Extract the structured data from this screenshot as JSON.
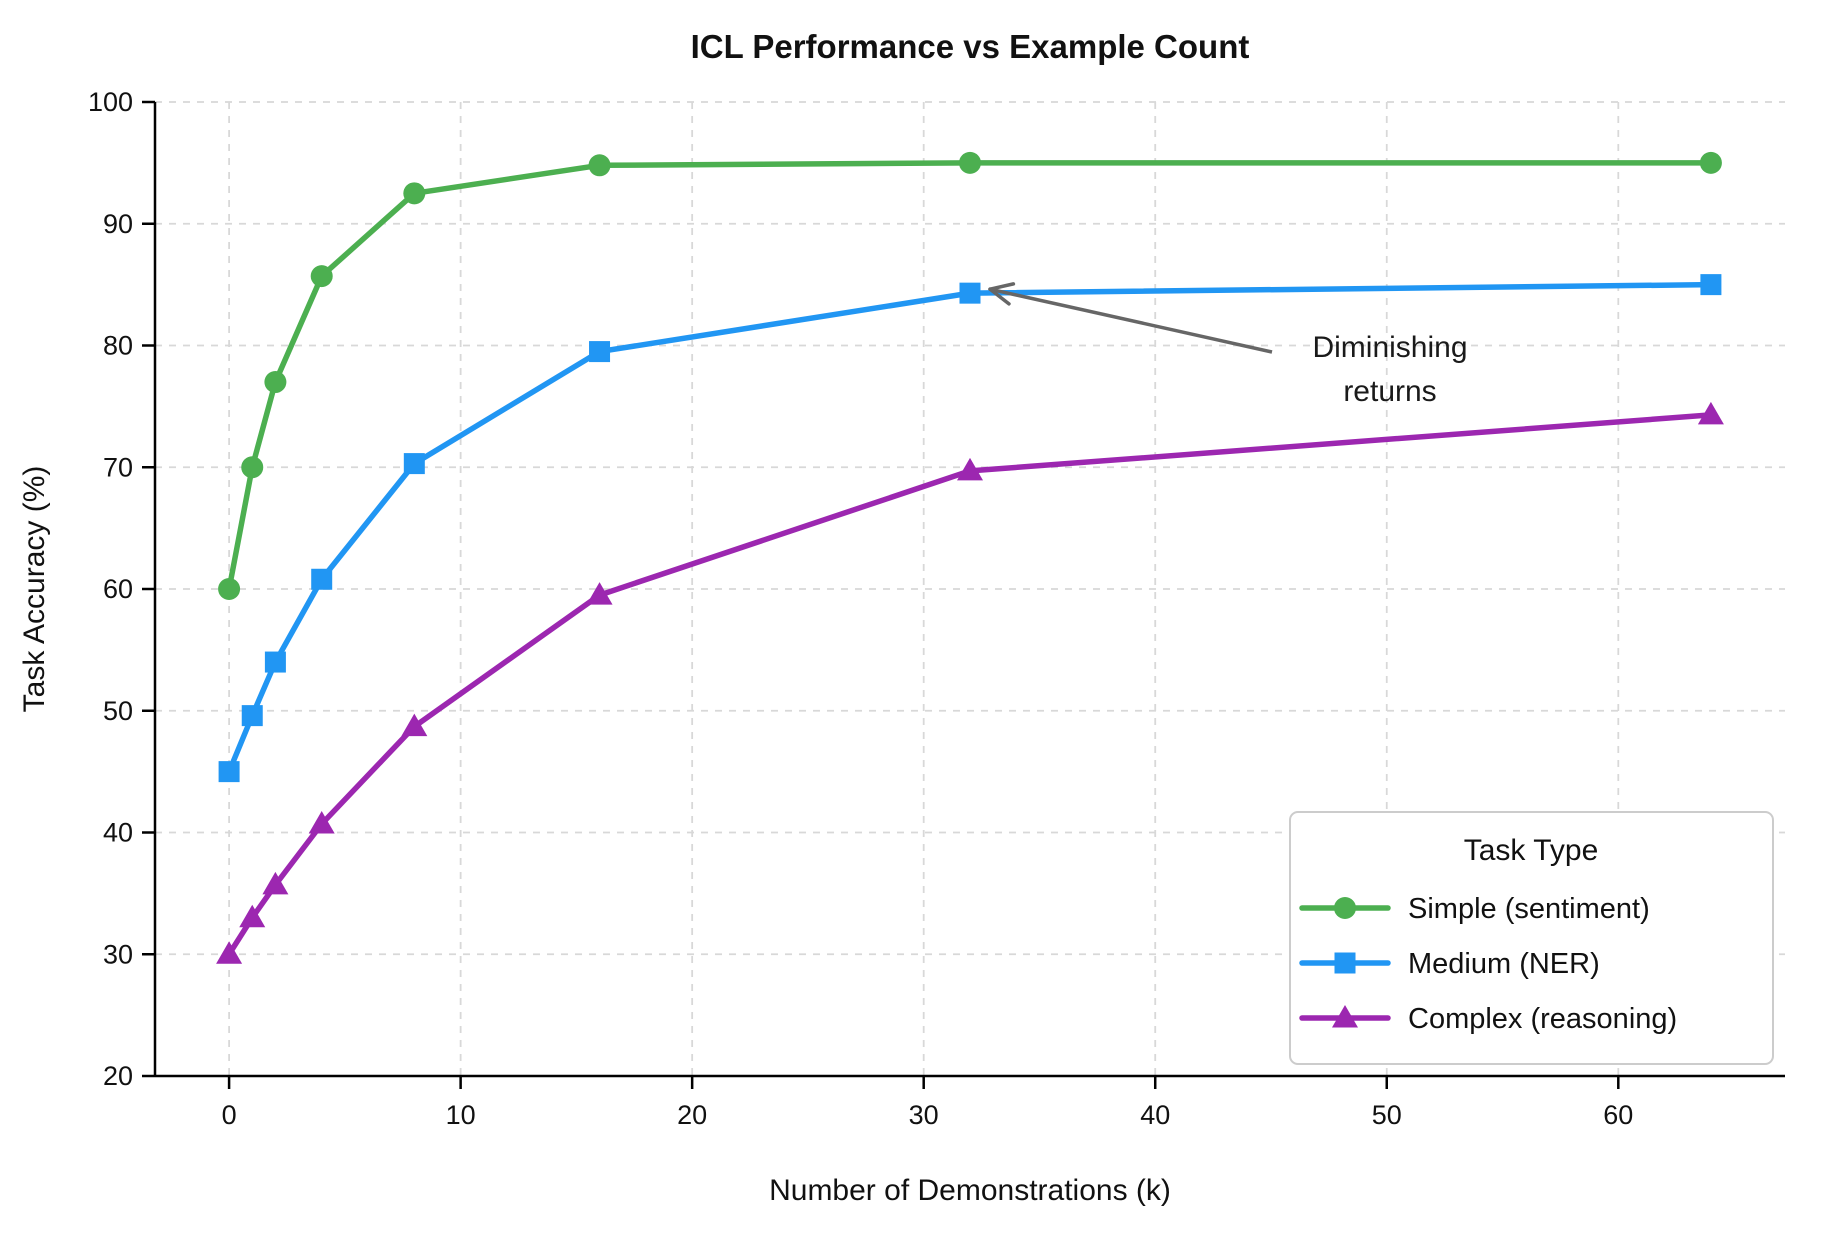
{
  "chart_data": {
    "type": "line",
    "title": "ICL Performance vs Example Count",
    "xlabel": "Number of Demonstrations (k)",
    "ylabel": "Task Accuracy (%)",
    "x": [
      0,
      1,
      2,
      4,
      8,
      16,
      32,
      64
    ],
    "series": [
      {
        "name": "Simple (sentiment)",
        "marker": "circle",
        "color": "#4CAF50",
        "values": [
          60,
          70,
          77,
          85.7,
          92.5,
          94.8,
          95,
          95
        ]
      },
      {
        "name": "Medium (NER)",
        "marker": "square",
        "color": "#2196F3",
        "values": [
          45,
          49.6,
          54,
          60.8,
          70.3,
          79.5,
          84.3,
          85
        ]
      },
      {
        "name": "Complex (reasoning)",
        "marker": "triangle",
        "color": "#9C27B0",
        "values": [
          30,
          33,
          35.7,
          40.7,
          48.7,
          59.5,
          69.7,
          74.3
        ]
      }
    ],
    "xticks": [
      0,
      10,
      20,
      30,
      40,
      50,
      60
    ],
    "yticks": [
      20,
      30,
      40,
      50,
      60,
      70,
      80,
      90,
      100
    ],
    "xlim": [
      -3.2,
      67.2
    ],
    "ylim": [
      20,
      100
    ],
    "grid": true,
    "grid_color": "#d8d8d8",
    "legend": {
      "title": "Task Type",
      "position": "lower right"
    },
    "annotation": {
      "lines": [
        "Diminishing",
        "returns"
      ],
      "target_x": 32,
      "target_y": 84.3,
      "arrow_color": "#666666"
    }
  }
}
